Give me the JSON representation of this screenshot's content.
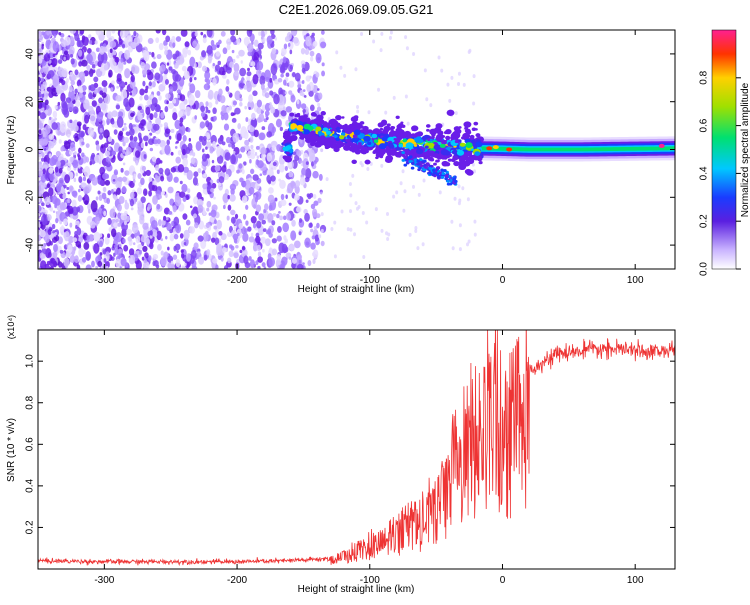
{
  "title": "C2E1.2026.069.09.05.G21",
  "colors": {
    "snr_line": "#ee3333",
    "dot": "#6a1ee8",
    "background": "#ffffff"
  },
  "chart_data": [
    {
      "type": "heatmap",
      "xlabel": "Height of straight line (km)",
      "ylabel": "Frequency (Hz)",
      "xlim": [
        -350,
        130
      ],
      "ylim": [
        -50,
        50
      ],
      "x_ticks": [
        -300,
        -200,
        -100,
        0,
        100
      ],
      "y_ticks": [
        -40,
        -20,
        0,
        20,
        40
      ],
      "colorbar": {
        "label": "Normalized spectral amplitude",
        "range": [
          0,
          1
        ],
        "ticks": [
          0.0,
          0.2,
          0.4,
          0.6,
          0.8
        ]
      },
      "ridge": {
        "description_points_x": [
          -160,
          -140,
          -120,
          -100,
          -80,
          -60,
          -40,
          -20,
          0,
          20,
          60,
          100,
          130
        ],
        "description_points_y": [
          10,
          8,
          6,
          4,
          3,
          2,
          1,
          0.5,
          0.3,
          0,
          0,
          0.3,
          0.5
        ]
      },
      "grid": false
    },
    {
      "type": "line",
      "xlabel": "Height of straight line (km)",
      "ylabel": "SNR (10 * v/v)",
      "scale_label": "(x10⁴)",
      "xlim": [
        -350,
        130
      ],
      "ylim": [
        0,
        1.15
      ],
      "x_ticks": [
        -300,
        -200,
        -100,
        0,
        100
      ],
      "y_ticks": [
        0.2,
        0.4,
        0.6,
        0.8,
        1.0
      ],
      "series": [
        {
          "x": [
            -350,
            -300,
            -250,
            -200,
            -160,
            -130,
            -110,
            -95,
            -80,
            -65,
            -50,
            -40,
            -30,
            -20,
            -10,
            -5,
            0,
            5,
            10,
            15,
            20,
            30,
            40,
            60,
            80,
            100,
            120,
            130
          ],
          "y": [
            0.04,
            0.035,
            0.035,
            0.035,
            0.04,
            0.05,
            0.1,
            0.15,
            0.2,
            0.25,
            0.35,
            0.5,
            0.65,
            0.75,
            0.85,
            0.9,
            0.7,
            0.75,
            0.8,
            0.85,
            0.95,
            1.0,
            1.03,
            1.05,
            1.06,
            1.05,
            1.05,
            1.05
          ]
        }
      ],
      "grid": false
    }
  ]
}
